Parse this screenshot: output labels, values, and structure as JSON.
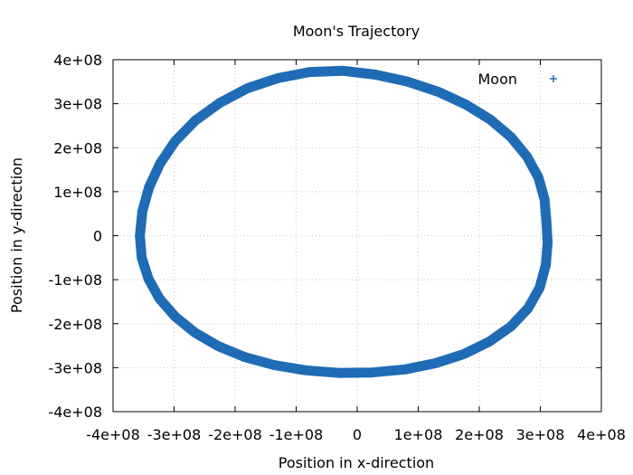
{
  "chart_data": {
    "type": "scatter",
    "title": "Moon's Trajectory",
    "xlabel": "Position in x-direction",
    "ylabel": "Position in y-direction",
    "xlim": [
      -400000000,
      400000000
    ],
    "ylim": [
      -400000000,
      400000000
    ],
    "xticks": [
      {
        "value": -400000000,
        "label": "-4e+08"
      },
      {
        "value": -300000000,
        "label": "-3e+08"
      },
      {
        "value": -200000000,
        "label": "-2e+08"
      },
      {
        "value": -100000000,
        "label": "-1e+08"
      },
      {
        "value": 0,
        "label": "0"
      },
      {
        "value": 100000000,
        "label": "1e+08"
      },
      {
        "value": 200000000,
        "label": "2e+08"
      },
      {
        "value": 300000000,
        "label": "3e+08"
      },
      {
        "value": 400000000,
        "label": "4e+08"
      }
    ],
    "yticks": [
      {
        "value": 400000000,
        "label": "4e+08"
      },
      {
        "value": 300000000,
        "label": "3e+08"
      },
      {
        "value": 200000000,
        "label": "2e+08"
      },
      {
        "value": 100000000,
        "label": "1e+08"
      },
      {
        "value": 0,
        "label": "0"
      },
      {
        "value": -100000000,
        "label": "-1e+08"
      },
      {
        "value": -200000000,
        "label": "-2e+08"
      },
      {
        "value": -300000000,
        "label": "-3e+08"
      },
      {
        "value": -400000000,
        "label": "-4e+08"
      }
    ],
    "grid": true,
    "legend_position": "top-right",
    "series": [
      {
        "name": "Moon",
        "color": "#1f6bb5",
        "marker": "plus",
        "points": [
          [
            310000000,
            30000000
          ],
          [
            307000000,
            82000000
          ],
          [
            297000000,
            132000000
          ],
          [
            278000000,
            180000000
          ],
          [
            252000000,
            224000000
          ],
          [
            218000000,
            264000000
          ],
          [
            178000000,
            298000000
          ],
          [
            133000000,
            327000000
          ],
          [
            83000000,
            350000000
          ],
          [
            30000000,
            366000000
          ],
          [
            -24000000,
            375000000
          ],
          [
            -78000000,
            372000000
          ],
          [
            -130000000,
            358000000
          ],
          [
            -180000000,
            335000000
          ],
          [
            -225000000,
            302000000
          ],
          [
            -265000000,
            262000000
          ],
          [
            -298000000,
            215000000
          ],
          [
            -323000000,
            164000000
          ],
          [
            -341000000,
            110000000
          ],
          [
            -352000000,
            55000000
          ],
          [
            -356000000,
            0
          ],
          [
            -353000000,
            -50000000
          ],
          [
            -342000000,
            -98000000
          ],
          [
            -324000000,
            -143000000
          ],
          [
            -298000000,
            -184000000
          ],
          [
            -266000000,
            -220000000
          ],
          [
            -228000000,
            -251000000
          ],
          [
            -184000000,
            -276000000
          ],
          [
            -136000000,
            -294000000
          ],
          [
            -84000000,
            -306000000
          ],
          [
            -30000000,
            -312000000
          ],
          [
            24000000,
            -311000000
          ],
          [
            78000000,
            -304000000
          ],
          [
            128000000,
            -290000000
          ],
          [
            175000000,
            -269000000
          ],
          [
            216000000,
            -241000000
          ],
          [
            252000000,
            -206000000
          ],
          [
            280000000,
            -165000000
          ],
          [
            299000000,
            -118000000
          ],
          [
            309000000,
            -66000000
          ],
          [
            312000000,
            -16000000
          ]
        ]
      }
    ]
  }
}
